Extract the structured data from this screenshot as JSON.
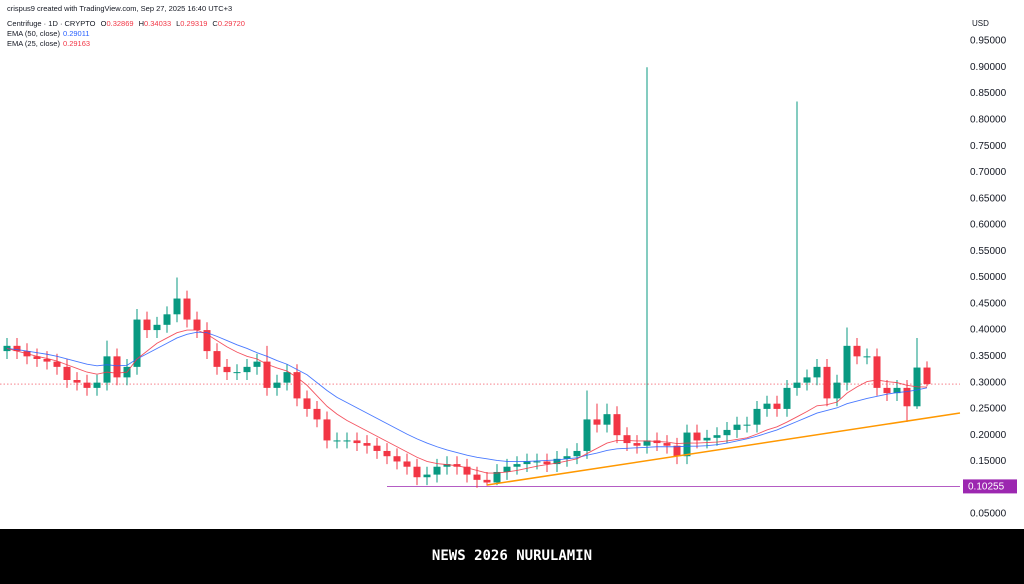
{
  "header": {
    "attribution": "crispus9 created with TradingView.com, Sep 27, 2025 16:40 UTC+3",
    "symbol": "Centrifuge · 1D · CRYPTO",
    "ohlc": [
      {
        "key": "O",
        "value": "0.32869"
      },
      {
        "key": "H",
        "value": "0.34033"
      },
      {
        "key": "L",
        "value": "0.29319"
      },
      {
        "key": "C",
        "value": "0.29720"
      }
    ]
  },
  "footer": "NEWS 2026 NURULAMIN",
  "chart_data": {
    "type": "candlestick",
    "currency": "USD",
    "up_color": "#089981",
    "down_color": "#f23645",
    "grid": false,
    "open": [
      0.36,
      0.37,
      0.36,
      0.35,
      0.345,
      0.34,
      0.33,
      0.305,
      0.3,
      0.29,
      0.3,
      0.35,
      0.31,
      0.33,
      0.42,
      0.4,
      0.41,
      0.43,
      0.46,
      0.42,
      0.4,
      0.36,
      0.33,
      0.32,
      0.32,
      0.33,
      0.34,
      0.29,
      0.3,
      0.32,
      0.27,
      0.25,
      0.23,
      0.19,
      0.19,
      0.19,
      0.185,
      0.18,
      0.17,
      0.16,
      0.15,
      0.14,
      0.12,
      0.125,
      0.14,
      0.145,
      0.14,
      0.125,
      0.115,
      0.11,
      0.13,
      0.14,
      0.145,
      0.15,
      0.15,
      0.145,
      0.155,
      0.16,
      0.17,
      0.23,
      0.22,
      0.24,
      0.2,
      0.185,
      0.18,
      0.19,
      0.185,
      0.18,
      0.16,
      0.205,
      0.19,
      0.195,
      0.2,
      0.21,
      0.22,
      0.22,
      0.25,
      0.26,
      0.25,
      0.29,
      0.3,
      0.31,
      0.33,
      0.27,
      0.3,
      0.37,
      0.35,
      0.35,
      0.29,
      0.28,
      0.29,
      0.255,
      0.32869
    ],
    "high": [
      0.385,
      0.385,
      0.375,
      0.365,
      0.36,
      0.355,
      0.345,
      0.32,
      0.315,
      0.315,
      0.38,
      0.365,
      0.345,
      0.44,
      0.435,
      0.425,
      0.445,
      0.5,
      0.475,
      0.435,
      0.415,
      0.375,
      0.345,
      0.335,
      0.345,
      0.355,
      0.37,
      0.315,
      0.335,
      0.335,
      0.285,
      0.265,
      0.245,
      0.205,
      0.205,
      0.205,
      0.2,
      0.195,
      0.185,
      0.175,
      0.165,
      0.155,
      0.14,
      0.155,
      0.16,
      0.16,
      0.155,
      0.14,
      0.13,
      0.145,
      0.155,
      0.16,
      0.165,
      0.165,
      0.165,
      0.17,
      0.175,
      0.185,
      0.285,
      0.26,
      0.26,
      0.255,
      0.215,
      0.2,
      0.9,
      0.205,
      0.2,
      0.195,
      0.22,
      0.22,
      0.21,
      0.215,
      0.225,
      0.235,
      0.235,
      0.265,
      0.275,
      0.275,
      0.305,
      0.835,
      0.325,
      0.345,
      0.345,
      0.315,
      0.405,
      0.385,
      0.365,
      0.365,
      0.305,
      0.305,
      0.305,
      0.385,
      0.34033
    ],
    "low": [
      0.345,
      0.345,
      0.335,
      0.33,
      0.325,
      0.315,
      0.29,
      0.285,
      0.275,
      0.275,
      0.285,
      0.295,
      0.295,
      0.315,
      0.385,
      0.385,
      0.395,
      0.415,
      0.405,
      0.385,
      0.345,
      0.315,
      0.305,
      0.305,
      0.305,
      0.315,
      0.275,
      0.275,
      0.285,
      0.255,
      0.235,
      0.215,
      0.175,
      0.175,
      0.175,
      0.17,
      0.165,
      0.155,
      0.145,
      0.135,
      0.125,
      0.105,
      0.105,
      0.11,
      0.125,
      0.125,
      0.11,
      0.1,
      0.104,
      0.105,
      0.115,
      0.125,
      0.13,
      0.135,
      0.13,
      0.13,
      0.14,
      0.145,
      0.155,
      0.205,
      0.205,
      0.185,
      0.17,
      0.165,
      0.165,
      0.17,
      0.165,
      0.145,
      0.145,
      0.175,
      0.175,
      0.18,
      0.185,
      0.195,
      0.205,
      0.205,
      0.235,
      0.235,
      0.235,
      0.275,
      0.285,
      0.295,
      0.255,
      0.255,
      0.285,
      0.335,
      0.335,
      0.275,
      0.265,
      0.265,
      0.225,
      0.25,
      0.29319
    ],
    "close": [
      0.37,
      0.36,
      0.35,
      0.345,
      0.34,
      0.33,
      0.305,
      0.3,
      0.29,
      0.3,
      0.35,
      0.31,
      0.33,
      0.42,
      0.4,
      0.41,
      0.43,
      0.46,
      0.42,
      0.4,
      0.36,
      0.33,
      0.32,
      0.32,
      0.33,
      0.34,
      0.29,
      0.3,
      0.32,
      0.27,
      0.25,
      0.23,
      0.19,
      0.19,
      0.19,
      0.185,
      0.18,
      0.17,
      0.16,
      0.15,
      0.14,
      0.12,
      0.125,
      0.14,
      0.145,
      0.14,
      0.125,
      0.115,
      0.11,
      0.13,
      0.14,
      0.145,
      0.15,
      0.15,
      0.145,
      0.155,
      0.16,
      0.17,
      0.23,
      0.22,
      0.24,
      0.2,
      0.185,
      0.18,
      0.19,
      0.185,
      0.18,
      0.16,
      0.205,
      0.19,
      0.195,
      0.2,
      0.21,
      0.22,
      0.22,
      0.25,
      0.26,
      0.25,
      0.29,
      0.3,
      0.31,
      0.33,
      0.27,
      0.3,
      0.37,
      0.35,
      0.35,
      0.29,
      0.28,
      0.29,
      0.255,
      0.32869,
      0.2972
    ],
    "series": [
      {
        "name": "EMA (50, close)",
        "color": "#2962ff",
        "values": [
          0.365,
          0.363,
          0.36,
          0.357,
          0.354,
          0.35,
          0.345,
          0.34,
          0.335,
          0.332,
          0.334,
          0.332,
          0.333,
          0.345,
          0.355,
          0.365,
          0.375,
          0.385,
          0.392,
          0.396,
          0.395,
          0.388,
          0.38,
          0.372,
          0.365,
          0.357,
          0.35,
          0.342,
          0.335,
          0.325,
          0.315,
          0.3,
          0.285,
          0.272,
          0.262,
          0.252,
          0.242,
          0.232,
          0.222,
          0.212,
          0.202,
          0.193,
          0.185,
          0.178,
          0.172,
          0.167,
          0.162,
          0.158,
          0.155,
          0.152,
          0.15,
          0.15,
          0.15,
          0.151,
          0.152,
          0.153,
          0.155,
          0.157,
          0.162,
          0.166,
          0.171,
          0.174,
          0.175,
          0.176,
          0.177,
          0.178,
          0.178,
          0.178,
          0.179,
          0.179,
          0.18,
          0.182,
          0.185,
          0.189,
          0.193,
          0.198,
          0.204,
          0.21,
          0.218,
          0.226,
          0.234,
          0.242,
          0.247,
          0.252,
          0.26,
          0.265,
          0.27,
          0.274,
          0.278,
          0.281,
          0.283,
          0.286,
          0.29011
        ]
      },
      {
        "name": "EMA (25, close)",
        "color": "#f23645",
        "values": [
          0.365,
          0.36,
          0.355,
          0.35,
          0.346,
          0.341,
          0.334,
          0.327,
          0.32,
          0.316,
          0.32,
          0.318,
          0.32,
          0.345,
          0.36,
          0.375,
          0.385,
          0.395,
          0.4,
          0.4,
          0.392,
          0.38,
          0.368,
          0.358,
          0.35,
          0.345,
          0.335,
          0.328,
          0.322,
          0.31,
          0.295,
          0.275,
          0.255,
          0.24,
          0.228,
          0.218,
          0.208,
          0.198,
          0.188,
          0.178,
          0.168,
          0.158,
          0.15,
          0.146,
          0.144,
          0.142,
          0.138,
          0.133,
          0.128,
          0.128,
          0.13,
          0.133,
          0.137,
          0.141,
          0.144,
          0.147,
          0.151,
          0.155,
          0.165,
          0.175,
          0.185,
          0.19,
          0.19,
          0.189,
          0.189,
          0.188,
          0.187,
          0.184,
          0.185,
          0.185,
          0.186,
          0.187,
          0.189,
          0.192,
          0.195,
          0.202,
          0.21,
          0.216,
          0.225,
          0.235,
          0.245,
          0.256,
          0.258,
          0.263,
          0.28,
          0.292,
          0.302,
          0.305,
          0.302,
          0.3,
          0.295,
          0.292,
          0.29163
        ]
      }
    ],
    "levels": [
      {
        "value": 0.10255,
        "color": "#9c27b0",
        "start": 38
      }
    ],
    "trendline": {
      "color": "#ff9800",
      "x": [
        48,
        95.3
      ],
      "y": [
        0.1052,
        0.2422
      ]
    },
    "ylim": [
      0.0234,
      0.9995
    ],
    "yticks": [
      {
        "value": 0.05,
        "label": "0.05000"
      },
      {
        "value": 0.1,
        "label": "0.10000"
      },
      {
        "value": 0.15,
        "label": "0.15000"
      },
      {
        "value": 0.2,
        "label": "0.20000"
      },
      {
        "value": 0.25,
        "label": "0.25000"
      },
      {
        "value": 0.3,
        "label": "0.30000"
      },
      {
        "value": 0.35,
        "label": "0.35000"
      },
      {
        "value": 0.4,
        "label": "0.40000"
      },
      {
        "value": 0.45,
        "label": "0.45000"
      },
      {
        "value": 0.5,
        "label": "0.50000"
      },
      {
        "value": 0.55,
        "label": "0.55000"
      },
      {
        "value": 0.6,
        "label": "0.60000"
      },
      {
        "value": 0.65,
        "label": "0.65000"
      },
      {
        "value": 0.7,
        "label": "0.70000"
      },
      {
        "value": 0.75,
        "label": "0.75000"
      },
      {
        "value": 0.8,
        "label": "0.80000"
      },
      {
        "value": 0.85,
        "label": "0.85000"
      },
      {
        "value": 0.9,
        "label": "0.90000"
      },
      {
        "value": 0.95,
        "label": "0.95000"
      }
    ]
  }
}
